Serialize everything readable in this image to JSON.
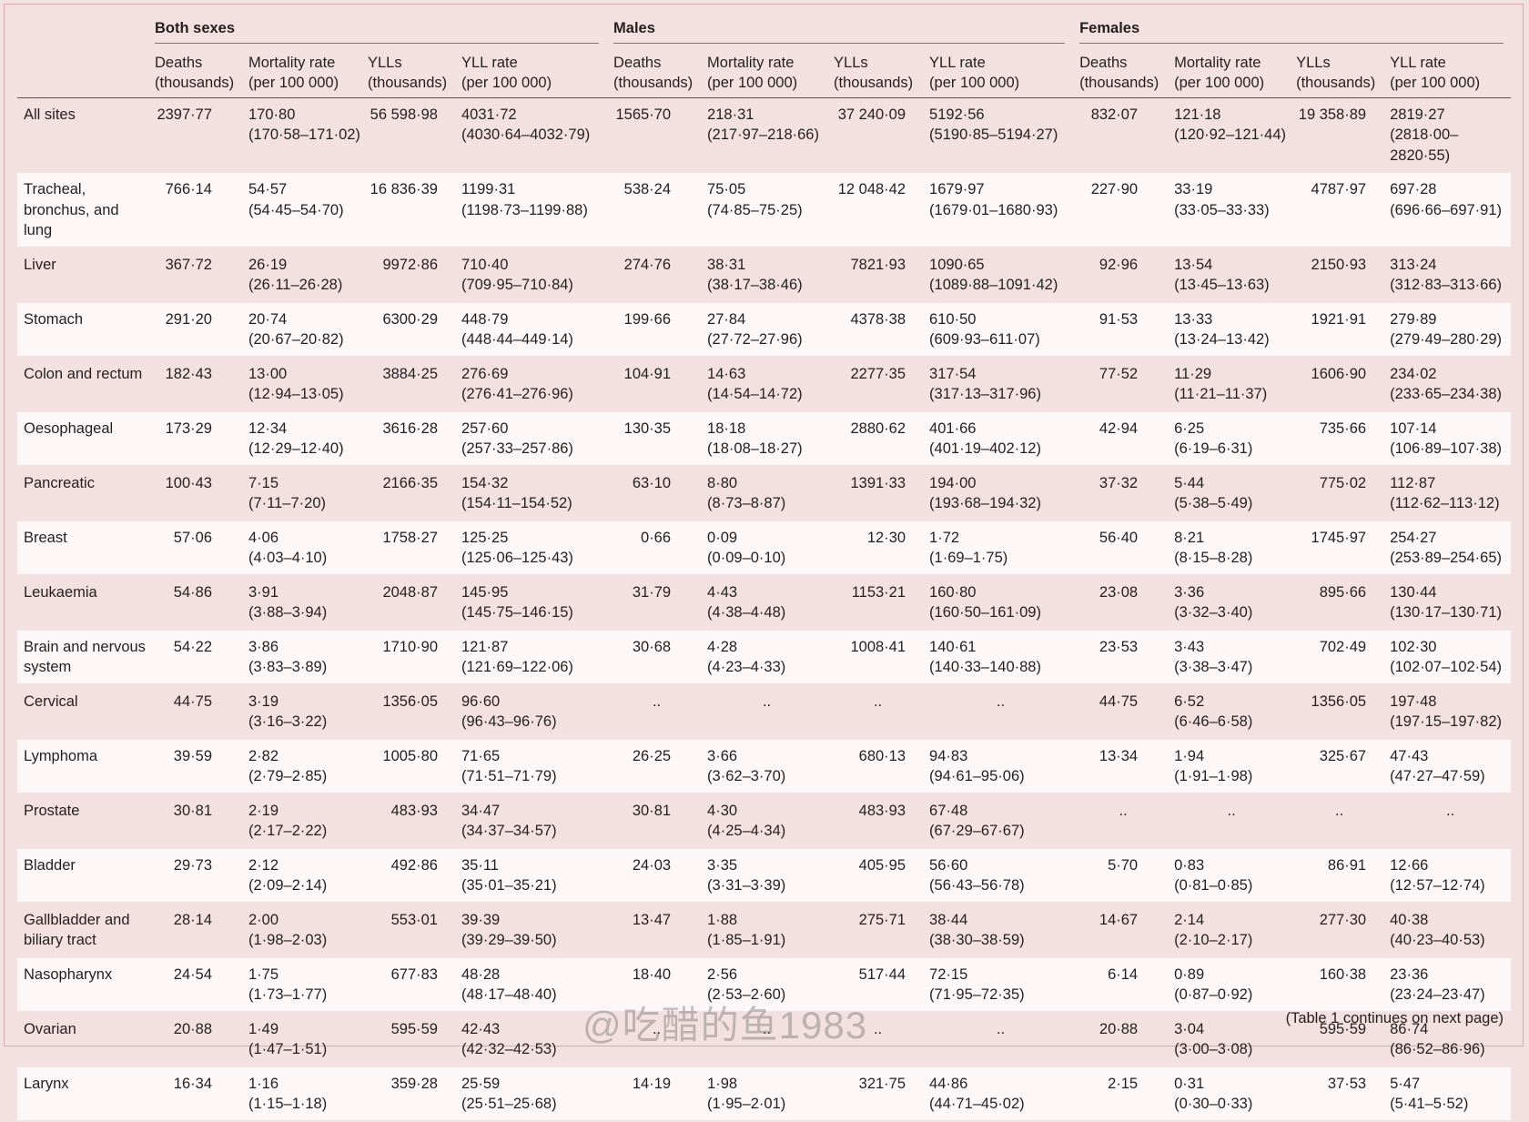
{
  "table": {
    "groups": [
      "Both sexes",
      "Males",
      "Females"
    ],
    "columns": [
      [
        "Deaths",
        "(thousands)"
      ],
      [
        "Mortality rate",
        "(per 100 000)"
      ],
      [
        "YLLs",
        "(thousands)"
      ],
      [
        "YLL rate",
        "(per 100 000)"
      ]
    ],
    "rows": [
      {
        "label": "All sites",
        "cells": [
          [
            "2397·77"
          ],
          [
            "170·80",
            "(170·58–171·02)"
          ],
          [
            "56 598·98"
          ],
          [
            "4031·72",
            "(4030·64–4032·79)"
          ],
          [
            "1565·70"
          ],
          [
            "218·31",
            "(217·97–218·66)"
          ],
          [
            "37 240·09"
          ],
          [
            "5192·56",
            "(5190·85–5194·27)"
          ],
          [
            "832·07"
          ],
          [
            "121·18",
            "(120·92–121·44)"
          ],
          [
            "19 358·89"
          ],
          [
            "2819·27",
            "(2818·00–",
            "2820·55)"
          ]
        ]
      },
      {
        "label": "Tracheal, bronchus, and lung",
        "cells": [
          [
            "766·14"
          ],
          [
            "54·57",
            "(54·45–54·70)"
          ],
          [
            "16 836·39"
          ],
          [
            "1199·31",
            "(1198·73–1199·88)"
          ],
          [
            "538·24"
          ],
          [
            "75·05",
            "(74·85–75·25)"
          ],
          [
            "12 048·42"
          ],
          [
            "1679·97",
            "(1679·01–1680·93)"
          ],
          [
            "227·90"
          ],
          [
            "33·19",
            "(33·05–33·33)"
          ],
          [
            "4787·97"
          ],
          [
            "697·28",
            "(696·66–697·91)"
          ]
        ]
      },
      {
        "label": "Liver",
        "cells": [
          [
            "367·72"
          ],
          [
            "26·19",
            "(26·11–26·28)"
          ],
          [
            "9972·86"
          ],
          [
            "710·40",
            "(709·95–710·84)"
          ],
          [
            "274·76"
          ],
          [
            "38·31",
            "(38·17–38·46)"
          ],
          [
            "7821·93"
          ],
          [
            "1090·65",
            "(1089·88–1091·42)"
          ],
          [
            "92·96"
          ],
          [
            "13·54",
            "(13·45–13·63)"
          ],
          [
            "2150·93"
          ],
          [
            "313·24",
            "(312·83–313·66)"
          ]
        ]
      },
      {
        "label": "Stomach",
        "cells": [
          [
            "291·20"
          ],
          [
            "20·74",
            "(20·67–20·82)"
          ],
          [
            "6300·29"
          ],
          [
            "448·79",
            "(448·44–449·14)"
          ],
          [
            "199·66"
          ],
          [
            "27·84",
            "(27·72–27·96)"
          ],
          [
            "4378·38"
          ],
          [
            "610·50",
            "(609·93–611·07)"
          ],
          [
            "91·53"
          ],
          [
            "13·33",
            "(13·24–13·42)"
          ],
          [
            "1921·91"
          ],
          [
            "279·89",
            "(279·49–280·29)"
          ]
        ]
      },
      {
        "label": "Colon and rectum",
        "cells": [
          [
            "182·43"
          ],
          [
            "13·00",
            "(12·94–13·05)"
          ],
          [
            "3884·25"
          ],
          [
            "276·69",
            "(276·41–276·96)"
          ],
          [
            "104·91"
          ],
          [
            "14·63",
            "(14·54–14·72)"
          ],
          [
            "2277·35"
          ],
          [
            "317·54",
            "(317·13–317·96)"
          ],
          [
            "77·52"
          ],
          [
            "11·29",
            "(11·21–11·37)"
          ],
          [
            "1606·90"
          ],
          [
            "234·02",
            "(233·65–234·38)"
          ]
        ]
      },
      {
        "label": "Oesophageal",
        "cells": [
          [
            "173·29"
          ],
          [
            "12·34",
            "(12·29–12·40)"
          ],
          [
            "3616·28"
          ],
          [
            "257·60",
            "(257·33–257·86)"
          ],
          [
            "130·35"
          ],
          [
            "18·18",
            "(18·08–18·27)"
          ],
          [
            "2880·62"
          ],
          [
            "401·66",
            "(401·19–402·12)"
          ],
          [
            "42·94"
          ],
          [
            "6·25",
            "(6·19–6·31)"
          ],
          [
            "735·66"
          ],
          [
            "107·14",
            "(106·89–107·38)"
          ]
        ]
      },
      {
        "label": "Pancreatic",
        "cells": [
          [
            "100·43"
          ],
          [
            "7·15",
            "(7·11–7·20)"
          ],
          [
            "2166·35"
          ],
          [
            "154·32",
            "(154·11–154·52)"
          ],
          [
            "63·10"
          ],
          [
            "8·80",
            "(8·73–8·87)"
          ],
          [
            "1391·33"
          ],
          [
            "194·00",
            "(193·68–194·32)"
          ],
          [
            "37·32"
          ],
          [
            "5·44",
            "(5·38–5·49)"
          ],
          [
            "775·02"
          ],
          [
            "112·87",
            "(112·62–113·12)"
          ]
        ]
      },
      {
        "label": "Breast",
        "cells": [
          [
            "57·06"
          ],
          [
            "4·06",
            "(4·03–4·10)"
          ],
          [
            "1758·27"
          ],
          [
            "125·25",
            "(125·06–125·43)"
          ],
          [
            "0·66"
          ],
          [
            "0·09",
            "(0·09–0·10)"
          ],
          [
            "12·30"
          ],
          [
            "1·72",
            "(1·69–1·75)"
          ],
          [
            "56·40"
          ],
          [
            "8·21",
            "(8·15–8·28)"
          ],
          [
            "1745·97"
          ],
          [
            "254·27",
            "(253·89–254·65)"
          ]
        ]
      },
      {
        "label": "Leukaemia",
        "cells": [
          [
            "54·86"
          ],
          [
            "3·91",
            "(3·88–3·94)"
          ],
          [
            "2048·87"
          ],
          [
            "145·95",
            "(145·75–146·15)"
          ],
          [
            "31·79"
          ],
          [
            "4·43",
            "(4·38–4·48)"
          ],
          [
            "1153·21"
          ],
          [
            "160·80",
            "(160·50–161·09)"
          ],
          [
            "23·08"
          ],
          [
            "3·36",
            "(3·32–3·40)"
          ],
          [
            "895·66"
          ],
          [
            "130·44",
            "(130·17–130·71)"
          ]
        ]
      },
      {
        "label": "Brain and nervous system",
        "cells": [
          [
            "54·22"
          ],
          [
            "3·86",
            "(3·83–3·89)"
          ],
          [
            "1710·90"
          ],
          [
            "121·87",
            "(121·69–122·06)"
          ],
          [
            "30·68"
          ],
          [
            "4·28",
            "(4·23–4·33)"
          ],
          [
            "1008·41"
          ],
          [
            "140·61",
            "(140·33–140·88)"
          ],
          [
            "23·53"
          ],
          [
            "3·43",
            "(3·38–3·47)"
          ],
          [
            "702·49"
          ],
          [
            "102·30",
            "(102·07–102·54)"
          ]
        ]
      },
      {
        "label": "Cervical",
        "cells": [
          [
            "44·75"
          ],
          [
            "3·19",
            "(3·16–3·22)"
          ],
          [
            "1356·05"
          ],
          [
            "96·60",
            "(96·43–96·76)"
          ],
          [
            ".."
          ],
          [
            ".."
          ],
          [
            ".."
          ],
          [
            ".."
          ],
          [
            "44·75"
          ],
          [
            "6·52",
            "(6·46–6·58)"
          ],
          [
            "1356·05"
          ],
          [
            "197·48",
            "(197·15–197·82)"
          ]
        ]
      },
      {
        "label": "Lymphoma",
        "cells": [
          [
            "39·59"
          ],
          [
            "2·82",
            "(2·79–2·85)"
          ],
          [
            "1005·80"
          ],
          [
            "71·65",
            "(71·51–71·79)"
          ],
          [
            "26·25"
          ],
          [
            "3·66",
            "(3·62–3·70)"
          ],
          [
            "680·13"
          ],
          [
            "94·83",
            "(94·61–95·06)"
          ],
          [
            "13·34"
          ],
          [
            "1·94",
            "(1·91–1·98)"
          ],
          [
            "325·67"
          ],
          [
            "47·43",
            "(47·27–47·59)"
          ]
        ]
      },
      {
        "label": "Prostate",
        "cells": [
          [
            "30·81"
          ],
          [
            "2·19",
            "(2·17–2·22)"
          ],
          [
            "483·93"
          ],
          [
            "34·47",
            "(34·37–34·57)"
          ],
          [
            "30·81"
          ],
          [
            "4·30",
            "(4·25–4·34)"
          ],
          [
            "483·93"
          ],
          [
            "67·48",
            "(67·29–67·67)"
          ],
          [
            ".."
          ],
          [
            ".."
          ],
          [
            ".."
          ],
          [
            ".."
          ]
        ]
      },
      {
        "label": "Bladder",
        "cells": [
          [
            "29·73"
          ],
          [
            "2·12",
            "(2·09–2·14)"
          ],
          [
            "492·86"
          ],
          [
            "35·11",
            "(35·01–35·21)"
          ],
          [
            "24·03"
          ],
          [
            "3·35",
            "(3·31–3·39)"
          ],
          [
            "405·95"
          ],
          [
            "56·60",
            "(56·43–56·78)"
          ],
          [
            "5·70"
          ],
          [
            "0·83",
            "(0·81–0·85)"
          ],
          [
            "86·91"
          ],
          [
            "12·66",
            "(12·57–12·74)"
          ]
        ]
      },
      {
        "label": "Gallbladder and biliary tract",
        "cells": [
          [
            "28·14"
          ],
          [
            "2·00",
            "(1·98–2·03)"
          ],
          [
            "553·01"
          ],
          [
            "39·39",
            "(39·29–39·50)"
          ],
          [
            "13·47"
          ],
          [
            "1·88",
            "(1·85–1·91)"
          ],
          [
            "275·71"
          ],
          [
            "38·44",
            "(38·30–38·59)"
          ],
          [
            "14·67"
          ],
          [
            "2·14",
            "(2·10–2·17)"
          ],
          [
            "277·30"
          ],
          [
            "40·38",
            "(40·23–40·53)"
          ]
        ]
      },
      {
        "label": "Nasopharynx",
        "cells": [
          [
            "24·54"
          ],
          [
            "1·75",
            "(1·73–1·77)"
          ],
          [
            "677·83"
          ],
          [
            "48·28",
            "(48·17–48·40)"
          ],
          [
            "18·40"
          ],
          [
            "2·56",
            "(2·53–2·60)"
          ],
          [
            "517·44"
          ],
          [
            "72·15",
            "(71·95–72·35)"
          ],
          [
            "6·14"
          ],
          [
            "0·89",
            "(0·87–0·92)"
          ],
          [
            "160·38"
          ],
          [
            "23·36",
            "(23·24–23·47)"
          ]
        ]
      },
      {
        "label": "Ovarian",
        "cells": [
          [
            "20·88"
          ],
          [
            "1·49",
            "(1·47–1·51)"
          ],
          [
            "595·59"
          ],
          [
            "42·43",
            "(42·32–42·53)"
          ],
          [
            ".."
          ],
          [
            ".."
          ],
          [
            ".."
          ],
          [
            ".."
          ],
          [
            "20·88"
          ],
          [
            "3·04",
            "(3·00–3·08)"
          ],
          [
            "595·59"
          ],
          [
            "86·74",
            "(86·52–86·96)"
          ]
        ]
      },
      {
        "label": "Larynx",
        "cells": [
          [
            "16·34"
          ],
          [
            "1·16",
            "(1·15–1·18)"
          ],
          [
            "359·28"
          ],
          [
            "25·59",
            "(25·51–25·68)"
          ],
          [
            "14·19"
          ],
          [
            "1·98",
            "(1·95–2·01)"
          ],
          [
            "321·75"
          ],
          [
            "44·86",
            "(44·71–45·02)"
          ],
          [
            "2·15"
          ],
          [
            "0·31",
            "(0·30–0·33)"
          ],
          [
            "37·53"
          ],
          [
            "5·47",
            "(5·41–5·52)"
          ]
        ]
      }
    ],
    "footer": "(Table 1 continues on next page)"
  },
  "watermark": "@吃醋的鱼1983"
}
